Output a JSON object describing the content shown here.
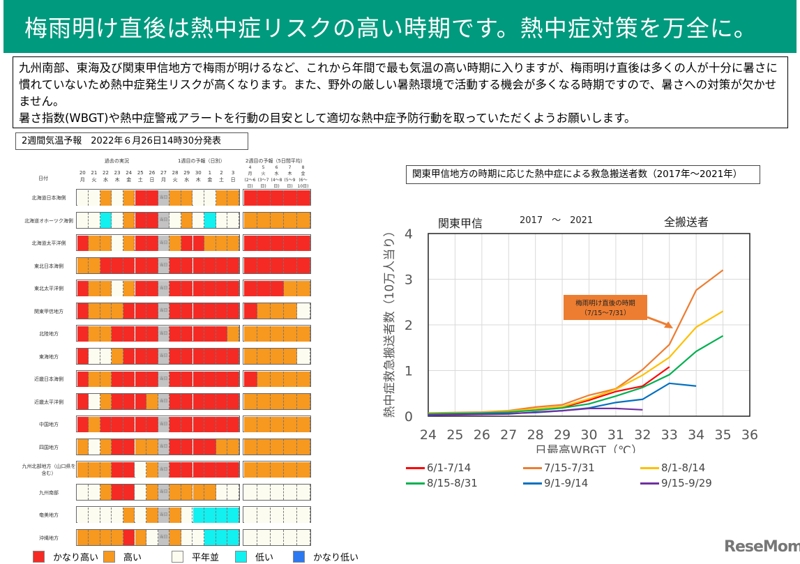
{
  "banner": {
    "title": "梅雨明け直後は熱中症リスクの高い時期です。熱中症対策を万全に。"
  },
  "intro": {
    "text": "九州南部、東海及び関東甲信地方で梅雨が明けるなど、これから年間で最も気温の高い時期に入りますが、梅雨明け直後は多くの人が十分に暑さに慣れていないため熱中症発生リスクが高くなります。また、野外の厳しい暑熱環境で活動する機会が多くなる時期ですので、暑さへの対策が欠かせません。",
    "text2": "暑さ指数(WBGT)や熱中症警戒アラートを行動の目安として適切な熱中症予防行動を取っていただくようお願いします。"
  },
  "forecast": {
    "title": "2週間気温予報　2022年６月26日14時30分発表",
    "date_label": "日付",
    "past_label": "過去の実況",
    "week1_label": "1週目の予報（日別）",
    "week2_label": "2週目の予報（5日間平均）",
    "today_label": "当日",
    "days": [
      [
        "20",
        "月"
      ],
      [
        "21",
        "火"
      ],
      [
        "22",
        "水"
      ],
      [
        "23",
        "木"
      ],
      [
        "24",
        "金"
      ],
      [
        "25",
        "土"
      ],
      [
        "26",
        "日"
      ],
      [
        "27",
        "月"
      ],
      [
        "28",
        "火"
      ],
      [
        "29",
        "水"
      ],
      [
        "30",
        "木"
      ],
      [
        "1",
        "金"
      ],
      [
        "2",
        "土"
      ],
      [
        "3",
        "日"
      ]
    ],
    "weeks": [
      [
        "4",
        "月",
        "(2〜6日)"
      ],
      [
        "5",
        "火",
        "(3〜7日)"
      ],
      [
        "6",
        "水",
        "(4〜8日)"
      ],
      [
        "7",
        "木",
        "(5〜9日)"
      ],
      [
        "8",
        "金",
        "(6〜10日)"
      ]
    ],
    "colors": {
      "R": "#f52a24",
      "O": "#f7981f",
      "W": "#fcfcf0",
      "C": "#12f0f0",
      "G": "#c3c3c3",
      "B": "#2b78f0"
    },
    "rows": [
      {
        "region": "北海道日本海側",
        "daily": "WWOWORRGOOWWOO",
        "weekly": "RRRRR"
      },
      {
        "region": "北海道オホーツク海側",
        "daily": "WWCWORRGWOWCWW",
        "weekly": "OOOOO"
      },
      {
        "region": "北海道太平洋側",
        "daily": "ROOWORRGORROOO",
        "weekly": "RRRRR"
      },
      {
        "region": "東北日本海側",
        "daily": "OORRRRRGRRRRRR",
        "weekly": "RRRRR"
      },
      {
        "region": "東北太平洋側",
        "daily": "ROOWORRGRRRRRR",
        "weekly": "RRROO"
      },
      {
        "region": "関東甲信地方",
        "daily": "ROOORRRGRRRRRR",
        "weekly": "ROOOW"
      },
      {
        "region": "北陸地方",
        "daily": "ROORRRRGRRRRRO",
        "weekly": "OOOOO"
      },
      {
        "region": "東海地方",
        "daily": "RWWORRRGRRRRRR",
        "weekly": "OOOOW"
      },
      {
        "region": "近畿日本海側",
        "daily": "ROORRRRGRRRRRR",
        "weekly": "ROOOO"
      },
      {
        "region": "近畿太平洋側",
        "daily": "RWORRROGRRRRRR",
        "weekly": "OOOOO"
      },
      {
        "region": "中国地方",
        "daily": "RORRRRRGRRRRRR",
        "weekly": "OOOOO"
      },
      {
        "region": "四国地方",
        "daily": "OWORROOGRRRROO",
        "weekly": "OOOOO"
      },
      {
        "region": "九州北部地方（山口県を含む）",
        "daily": "OOORRWOGRRRRRR",
        "weekly": "OOOOO"
      },
      {
        "region": "九州南部",
        "daily": "WWORRWOGOOOOWW",
        "weekly": "WWWWW"
      },
      {
        "region": "奄美地方",
        "daily": "WWWWOWOGOWCCCC",
        "weekly": "WWWWW"
      },
      {
        "region": "沖縄地方",
        "daily": "OOOOROWGOWWCCC",
        "weekly": "WWWWW"
      }
    ],
    "legend": [
      {
        "key": "R",
        "label": "かなり高い"
      },
      {
        "key": "O",
        "label": "高い"
      },
      {
        "key": "W",
        "label": "平年並"
      },
      {
        "key": "C",
        "label": "低い"
      },
      {
        "key": "B",
        "label": "かなり低い"
      }
    ]
  },
  "chart_box_title": "関東甲信地方の時期に応じた熱中症による救急搬送者数（2017年〜2021年）",
  "chart_data": {
    "type": "line",
    "header_region": "関東甲信",
    "header_years": "2017　～　2021",
    "header_scope": "全搬送者",
    "xlabel": "日最高WBGT（℃）",
    "ylabel": "熱中症救急搬送者数（10万人当り）",
    "xlim": [
      24,
      36
    ],
    "ylim": [
      0,
      4
    ],
    "xticks": [
      "24",
      "25",
      "26",
      "27",
      "28",
      "29",
      "30",
      "31",
      "32",
      "33",
      "34",
      "35",
      "36"
    ],
    "yticks": [
      "0",
      "1",
      "2",
      "3",
      "4"
    ],
    "grid": true,
    "legend_position": "bottom",
    "annotation": {
      "line1": "梅雨明け直後の時期",
      "line2": "（7/15〜7/31）",
      "color": "#ed7d31"
    },
    "x": [
      24,
      25,
      26,
      27,
      28,
      29,
      30,
      31,
      32,
      33,
      34,
      35
    ],
    "series": [
      {
        "name": "6/1-7/14",
        "color": "#ff0000",
        "values": [
          0.05,
          0.06,
          0.07,
          0.1,
          0.14,
          0.19,
          0.35,
          0.54,
          0.66,
          1.08,
          null,
          null
        ]
      },
      {
        "name": "7/15-7/31",
        "color": "#ed7d31",
        "values": [
          0.07,
          0.08,
          0.09,
          0.12,
          0.2,
          0.25,
          0.46,
          0.6,
          1.02,
          1.57,
          2.76,
          3.2
        ]
      },
      {
        "name": "8/1-8/14",
        "color": "#ffc000",
        "values": [
          0.06,
          0.07,
          0.08,
          0.11,
          0.16,
          0.21,
          0.38,
          0.59,
          0.9,
          1.29,
          1.95,
          2.3
        ]
      },
      {
        "name": "8/15-8/31",
        "color": "#00b050",
        "values": [
          0.05,
          0.06,
          0.07,
          0.09,
          0.13,
          0.18,
          0.27,
          0.44,
          0.63,
          0.91,
          1.42,
          1.76
        ]
      },
      {
        "name": "9/1-9/14",
        "color": "#0070c0",
        "values": [
          0.03,
          0.04,
          0.05,
          0.06,
          0.08,
          0.12,
          0.18,
          0.3,
          0.37,
          0.72,
          0.66,
          null
        ]
      },
      {
        "name": "9/15-9/29",
        "color": "#7030a0",
        "values": [
          0.02,
          0.03,
          0.04,
          0.05,
          0.09,
          0.12,
          0.17,
          0.17,
          0.14,
          null,
          null,
          null
        ]
      }
    ]
  },
  "logo": "ReseMom"
}
